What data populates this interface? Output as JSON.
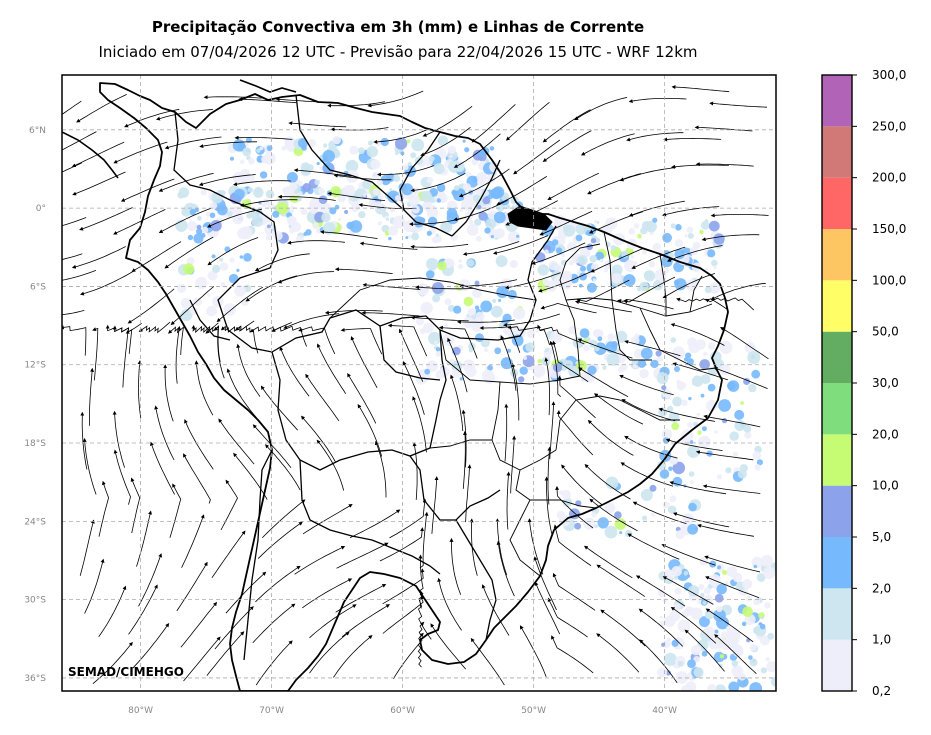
{
  "title": "Precipitação Convectiva em 3h (mm) e Linhas de Corrente",
  "subtitle": "Iniciado em 07/04/2026 12 UTC - Previsão para 22/04/2026 15 UTC - WRF 12km",
  "credit": "SEMAD/CIMEHGO",
  "map": {
    "lon_range": [
      -86,
      -31.5
    ],
    "lat_range": [
      -37,
      10.2
    ],
    "lat_ticks": [
      {
        "lat": 6,
        "label": "6°N"
      },
      {
        "lat": 0,
        "label": "0°"
      },
      {
        "lat": -6,
        "label": "6°S"
      },
      {
        "lat": -12,
        "label": "12°S"
      },
      {
        "lat": -18,
        "label": "18°S"
      },
      {
        "lat": -24,
        "label": "24°S"
      },
      {
        "lat": -30,
        "label": "30°S"
      },
      {
        "lat": -36,
        "label": "36°S"
      }
    ],
    "lon_ticks": [
      {
        "lon": -80,
        "label": "80°W"
      },
      {
        "lon": -70,
        "label": "70°W"
      },
      {
        "lon": -60,
        "label": "60°W"
      },
      {
        "lon": -50,
        "label": "50°W"
      },
      {
        "lon": -40,
        "label": "40°W"
      }
    ],
    "grid": true
  },
  "colorbar": {
    "labels": [
      "0,2",
      "1,0",
      "2,0",
      "5,0",
      "10,0",
      "20,0",
      "30,0",
      "50,0",
      "100,0",
      "150,0",
      "200,0",
      "250,0",
      "300,0"
    ],
    "colors": [
      "#eeeefb",
      "#cde6f0",
      "#77b9fd",
      "#8ca3ec",
      "#c6fb74",
      "#7fdd7e",
      "#63ad62",
      "#fffe66",
      "#fec663",
      "#fe6766",
      "#d17976",
      "#b164b7"
    ]
  }
}
